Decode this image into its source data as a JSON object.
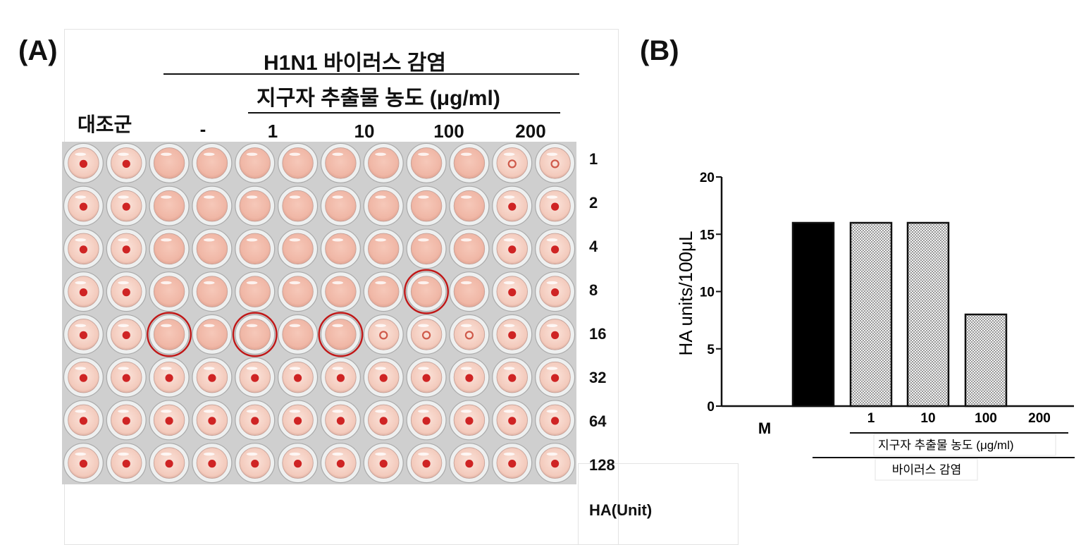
{
  "panel_a": {
    "label": "(A)",
    "header_infection": "H1N1 바이러스 감염",
    "header_concentration": "지구자 추출물 농도 (μg/ml)",
    "control_label": "대조군",
    "column_labels": [
      "-",
      "1",
      "10",
      "100",
      "200"
    ],
    "row_labels": [
      "1",
      "2",
      "4",
      "8",
      "16",
      "32",
      "64",
      "128"
    ],
    "unit_label": "HA(Unit)",
    "colors": {
      "well_agglutinated": "#f0b7a6",
      "button_red": "#cf2424",
      "circle_mark": "#c01818"
    },
    "plate": {
      "rows": 8,
      "cols": 12,
      "well_state_legend": "a = agglutinated (diffuse), p = small button, r = red button",
      "states": [
        [
          "r",
          "r",
          "a",
          "a",
          "a",
          "a",
          "a",
          "a",
          "a",
          "a",
          "p",
          "p"
        ],
        [
          "r",
          "r",
          "a",
          "a",
          "a",
          "a",
          "a",
          "a",
          "a",
          "a",
          "r",
          "r"
        ],
        [
          "r",
          "r",
          "a",
          "a",
          "a",
          "a",
          "a",
          "a",
          "a",
          "a",
          "r",
          "r"
        ],
        [
          "r",
          "r",
          "a",
          "a",
          "a",
          "a",
          "a",
          "a",
          "a",
          "a",
          "r",
          "r"
        ],
        [
          "r",
          "r",
          "a",
          "a",
          "a",
          "a",
          "a",
          "p",
          "p",
          "p",
          "r",
          "r"
        ],
        [
          "r",
          "r",
          "r",
          "r",
          "r",
          "r",
          "r",
          "r",
          "r",
          "r",
          "r",
          "r"
        ],
        [
          "r",
          "r",
          "r",
          "r",
          "r",
          "r",
          "r",
          "r",
          "r",
          "r",
          "r",
          "r"
        ],
        [
          "r",
          "r",
          "r",
          "r",
          "r",
          "r",
          "r",
          "r",
          "r",
          "r",
          "r",
          "r"
        ]
      ],
      "circled_wells": [
        [
          4,
          2
        ],
        [
          4,
          4
        ],
        [
          4,
          6
        ],
        [
          3,
          8
        ]
      ]
    }
  },
  "panel_b": {
    "label": "(B)",
    "chart_data": {
      "type": "bar",
      "ylabel": "HA units/100μL",
      "ylim": [
        0,
        20
      ],
      "yticks": [
        0,
        5,
        10,
        15,
        20
      ],
      "categories": [
        "M",
        "",
        "1",
        "10",
        "100",
        "200"
      ],
      "values": [
        0,
        16,
        16,
        16,
        8,
        0
      ],
      "bar_styles": [
        "none",
        "solid",
        "hatched",
        "hatched",
        "hatched",
        "none"
      ],
      "group_label_concentration": "지구자 추출물 농도 (μg/ml)",
      "group_label_infection": "바이러스 감염",
      "colors": {
        "solid": "#000000",
        "hatched": "#9a9a9a"
      }
    }
  }
}
